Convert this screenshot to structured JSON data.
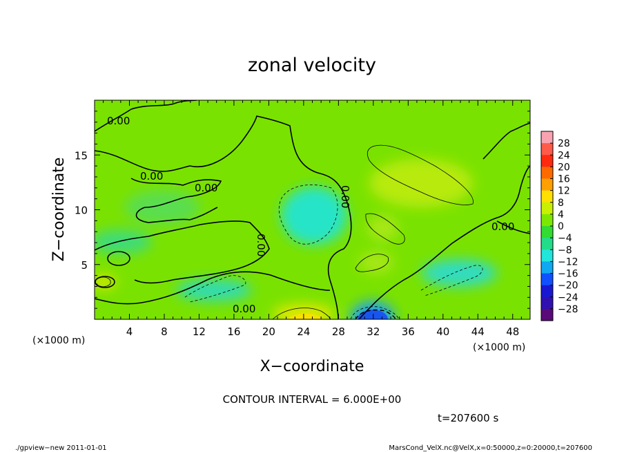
{
  "chart_data": {
    "type": "heatmap",
    "title": "zonal velocity",
    "xlabel": "X−coordinate",
    "ylabel": "Z−coordinate",
    "x_unit_left": "(×1000 m)",
    "x_unit_right": "(×1000 m)",
    "xlim": [
      0,
      50
    ],
    "ylim": [
      0,
      20
    ],
    "x_ticks": [
      "4",
      "8",
      "12",
      "16",
      "20",
      "24",
      "28",
      "32",
      "36",
      "40",
      "44",
      "48"
    ],
    "y_ticks": [
      "5",
      "10",
      "15"
    ],
    "contour_labels": [
      "0.00",
      "0.00",
      "0.00",
      "0.00",
      "0.00",
      "0.00",
      "0.00"
    ],
    "colorbar_labels": [
      "28",
      "24",
      "20",
      "16",
      "12",
      "8",
      "4",
      "0",
      "−4",
      "−8",
      "−12",
      "−16",
      "−20",
      "−24",
      "−28"
    ],
    "colorbar_colors": [
      "#f9a3b0",
      "#ff5a4a",
      "#ff2a10",
      "#ff6a00",
      "#ffa000",
      "#ffe000",
      "#c8f000",
      "#7ce800",
      "#32dc32",
      "#22dc8a",
      "#20e6dc",
      "#10a8f0",
      "#1050ff",
      "#1818d0",
      "#3010b0",
      "#5a0a78"
    ],
    "grid": false,
    "contour_interval_text": "CONTOUR INTERVAL = 6.000E+00",
    "time_text": "t=207600 s"
  },
  "footer": {
    "left": "./gpview−new  2011-01-01",
    "right": "MarsCond_VelX.nc@VelX,x=0:50000,z=0:20000,t=207600"
  }
}
